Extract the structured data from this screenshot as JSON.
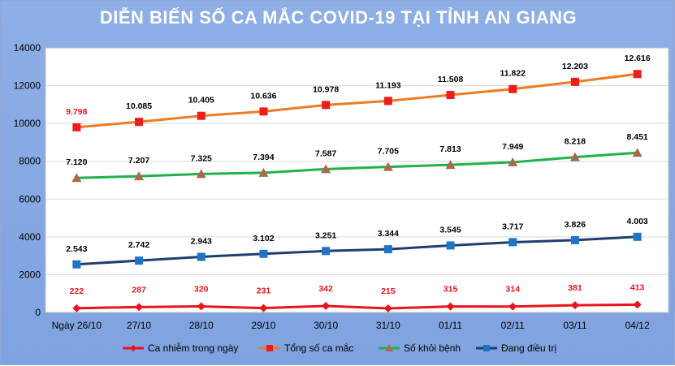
{
  "chart_data": {
    "type": "line",
    "title": "DIỄN BIẾN SỐ CA MẮC COVID-19 TẠI TỈNH AN GIANG",
    "categories": [
      "Ngày 26/10",
      "27/10",
      "28/10",
      "29/10",
      "30/10",
      "31/10",
      "01/11",
      "02/11",
      "03/11",
      "04/12"
    ],
    "ylim": [
      0,
      14000
    ],
    "yticks": [
      0,
      2000,
      4000,
      6000,
      8000,
      10000,
      12000,
      14000
    ],
    "grid": true,
    "legend_position": "bottom",
    "series": [
      {
        "name": "Ca nhiễm trong ngày",
        "color": "#e8141c",
        "marker": "diamond",
        "label_color": "#e8141c",
        "values": [
          222,
          287,
          320,
          231,
          342,
          215,
          315,
          314,
          381,
          413
        ],
        "labels": [
          "222",
          "287",
          "320",
          "231",
          "342",
          "215",
          "315",
          "314",
          "381",
          "413"
        ]
      },
      {
        "name": "Tổng số ca mắc",
        "color": "#ee7b22",
        "marker": "square",
        "marker_color": "#ee1c1c",
        "label_color": "#000000",
        "first_label_color": "#e8141c",
        "values": [
          9798,
          10085,
          10405,
          10636,
          10978,
          11193,
          11508,
          11822,
          12203,
          12616
        ],
        "labels": [
          "9.798",
          "10.085",
          "10.405",
          "10.636",
          "10.978",
          "11.193",
          "11.508",
          "11.822",
          "12.203",
          "12.616"
        ]
      },
      {
        "name": "Số khỏi bệnh",
        "color": "#21b14b",
        "marker": "triangle",
        "marker_color": "#a9694b",
        "label_color": "#000000",
        "values": [
          7120,
          7207,
          7325,
          7394,
          7587,
          7705,
          7813,
          7949,
          8218,
          8451
        ],
        "labels": [
          "7.120",
          "7.207",
          "7.325",
          "7.394",
          "7.587",
          "7.705",
          "7.813",
          "7.949",
          "8.218",
          "8.451"
        ]
      },
      {
        "name": "Đang điều trị",
        "color": "#1f3e6e",
        "marker": "square",
        "marker_color": "#1f73c8",
        "label_color": "#000000",
        "values": [
          2543,
          2742,
          2943,
          3102,
          3251,
          3344,
          3545,
          3717,
          3826,
          4003
        ],
        "labels": [
          "2.543",
          "2.742",
          "2.943",
          "3.102",
          "3.251",
          "3.344",
          "3.545",
          "3.717",
          "3.826",
          "4.003"
        ]
      }
    ]
  }
}
